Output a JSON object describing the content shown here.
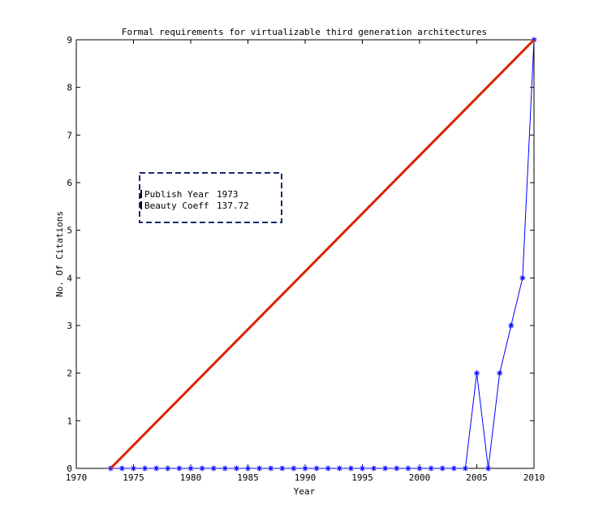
{
  "chart_data": {
    "type": "line",
    "title": "Formal requirements for virtualizable third generation architectures",
    "xlabel": "Year",
    "ylabel": "No. Of Citations",
    "xlim": [
      1970,
      2010
    ],
    "ylim": [
      0,
      9
    ],
    "xticks": [
      1970,
      1975,
      1980,
      1985,
      1990,
      1995,
      2000,
      2005,
      2010
    ],
    "yticks": [
      0,
      1,
      2,
      3,
      4,
      5,
      6,
      7,
      8,
      9
    ],
    "grid": false,
    "series": [
      {
        "marker": "asterisk",
        "color": "#0000ff",
        "x": [
          1973,
          1974,
          1975,
          1976,
          1977,
          1978,
          1979,
          1980,
          1981,
          1982,
          1983,
          1984,
          1985,
          1986,
          1987,
          1988,
          1989,
          1990,
          1991,
          1992,
          1993,
          1994,
          1995,
          1996,
          1997,
          1998,
          1999,
          2000,
          2001,
          2002,
          2003,
          2004,
          2005,
          2006,
          2007,
          2008,
          2009,
          2010
        ],
        "y": [
          0,
          0,
          0,
          0,
          0,
          0,
          0,
          0,
          0,
          0,
          0,
          0,
          0,
          0,
          0,
          0,
          0,
          0,
          0,
          0,
          0,
          0,
          0,
          0,
          0,
          0,
          0,
          0,
          0,
          0,
          0,
          0,
          2,
          0,
          2,
          3,
          4,
          9
        ]
      },
      {
        "marker": "none",
        "color": "#dd2200",
        "x": [
          1973,
          2010
        ],
        "y": [
          0,
          9
        ]
      }
    ],
    "annotation": {
      "rows": [
        {
          "label": "Publish Year",
          "value": "1973"
        },
        {
          "label": "Beauty Coeff",
          "value": "137.72"
        }
      ],
      "border_color": "#1a2a6c"
    }
  }
}
